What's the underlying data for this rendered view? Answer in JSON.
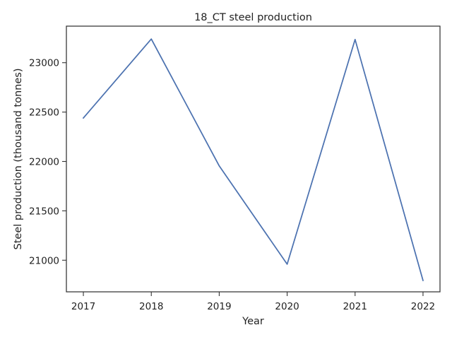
{
  "chart_data": {
    "type": "line",
    "title": "18_CT steel production",
    "xlabel": "Year",
    "ylabel": "Steel production (thousand tonnes)",
    "x": [
      "2017",
      "2018",
      "2019",
      "2020",
      "2021",
      "2022"
    ],
    "series": [
      {
        "values": [
          22440,
          23240,
          21955,
          20960,
          23235,
          20795
        ],
        "color": "#4c72b0"
      }
    ],
    "xlim": [
      2016.75,
      2022.25
    ],
    "ylim": [
      20680,
      23370
    ],
    "yticks": [
      "21000",
      "21500",
      "22000",
      "22500",
      "23000"
    ],
    "grid": false,
    "legend": "none"
  }
}
